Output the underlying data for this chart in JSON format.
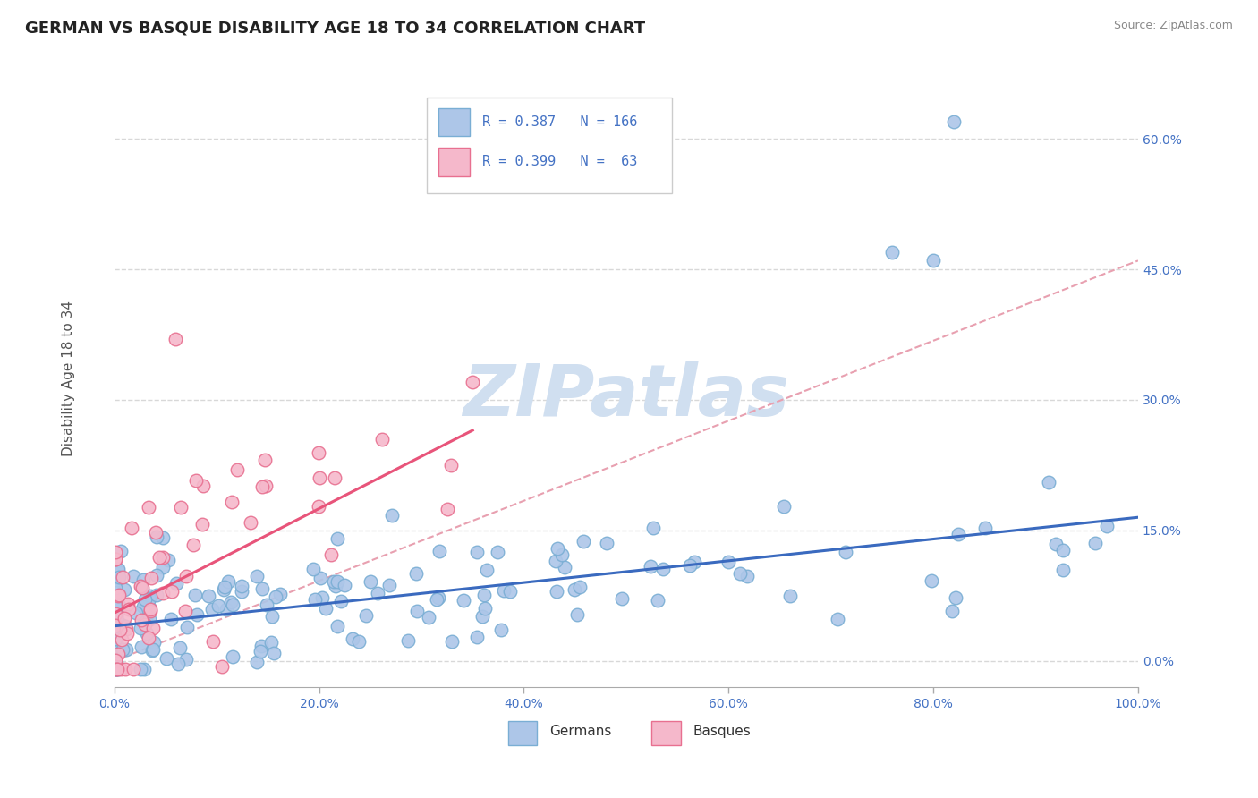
{
  "title": "GERMAN VS BASQUE DISABILITY AGE 18 TO 34 CORRELATION CHART",
  "source_text": "Source: ZipAtlas.com",
  "ylabel": "Disability Age 18 to 34",
  "xlim": [
    0.0,
    1.0
  ],
  "ylim": [
    -0.03,
    0.68
  ],
  "xticks": [
    0.0,
    0.2,
    0.4,
    0.6,
    0.8,
    1.0
  ],
  "xticklabels": [
    "0.0%",
    "20.0%",
    "40.0%",
    "60.0%",
    "80.0%",
    "100.0%"
  ],
  "yticks": [
    0.0,
    0.15,
    0.3,
    0.45,
    0.6
  ],
  "yticklabels": [
    "0.0%",
    "15.0%",
    "30.0%",
    "45.0%",
    "60.0%"
  ],
  "german_R": 0.387,
  "german_N": 166,
  "basque_R": 0.399,
  "basque_N": 63,
  "german_color": "#adc6e8",
  "basque_color": "#f5b8cb",
  "german_line_color": "#3a6abf",
  "basque_line_color": "#e8547a",
  "german_edge_color": "#7aaed4",
  "basque_edge_color": "#e87090",
  "watermark": "ZIPatlas",
  "watermark_color": "#d0dff0",
  "background_color": "#ffffff",
  "grid_color": "#d8d8d8",
  "title_fontsize": 13,
  "legend_fontsize": 11,
  "axis_label_fontsize": 11,
  "tick_fontsize": 10,
  "legend_color": "#4472c4",
  "german_intercept": 0.04,
  "german_slope": 0.125,
  "basque_intercept": 0.055,
  "basque_slope": 0.6,
  "dashed_line_color": "#e8a0b0",
  "dashed_intercept": 0.0,
  "dashed_slope": 0.46
}
